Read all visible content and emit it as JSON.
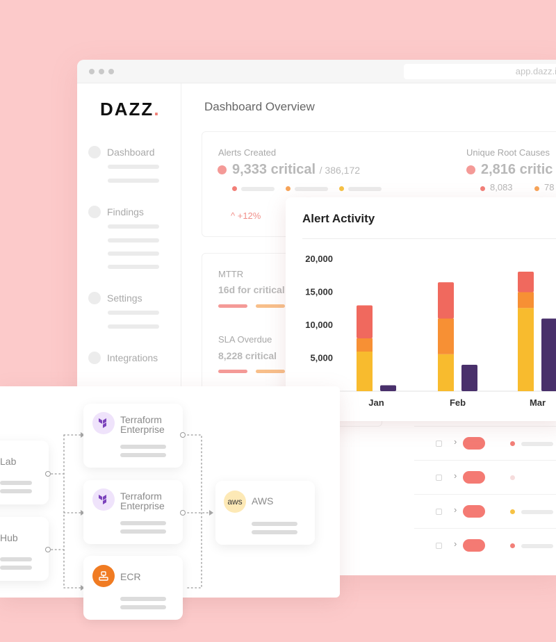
{
  "window": {
    "url": "app.dazz.i"
  },
  "sidebar": {
    "logo": "DAZZ",
    "logo_dot": ".",
    "items": [
      {
        "label": "Dashboard"
      },
      {
        "label": "Findings"
      },
      {
        "label": "Settings"
      },
      {
        "label": "Integrations"
      }
    ]
  },
  "main": {
    "title": "Dashboard Overview",
    "alerts_created": {
      "label": "Alerts Created",
      "value": "9,333 critical",
      "total": "/ 386,172",
      "trend": "+12%"
    },
    "unique_root_causes": {
      "label": "Unique Root Causes",
      "value": "2,816 critic",
      "sub_a": "8,083",
      "sub_b": "78"
    },
    "mttr": {
      "label": "MTTR",
      "value": "16d for critical"
    },
    "sla_overdue": {
      "label": "SLA Overdue",
      "value": "8,228 critical"
    }
  },
  "chart": {
    "title": "Alert Activity"
  },
  "chart_data": {
    "type": "bar",
    "stacked": true,
    "categories": [
      "Jan",
      "Feb",
      "Mar"
    ],
    "ylim": [
      0,
      20000
    ],
    "yticks": [
      "20,000",
      "15,000",
      "10,000",
      "5,000"
    ],
    "ytick_values": [
      20000,
      15000,
      10000,
      5000
    ],
    "stacked_bars": [
      {
        "category": "Jan",
        "segments": [
          6000,
          2000,
          5000
        ]
      },
      {
        "category": "Feb",
        "segments": [
          5600,
          5400,
          5500
        ]
      },
      {
        "category": "Mar",
        "segments": [
          12600,
          2400,
          3100
        ]
      }
    ],
    "second_bars": [
      {
        "category": "Jan",
        "value": 900
      },
      {
        "category": "Feb",
        "value": 4000
      },
      {
        "category": "Mar",
        "value": 11000
      }
    ],
    "colors": {
      "seg1": "#f8bb2e",
      "seg2": "#f79034",
      "seg3": "#f0695e",
      "second": "#49306b"
    }
  },
  "pipeline": {
    "sources": [
      {
        "title": "Lab"
      },
      {
        "title": "Hub"
      }
    ],
    "middle": [
      {
        "title_line1": "Terraform",
        "title_line2": "Enterprise",
        "icon": "terraform-icon"
      },
      {
        "title_line1": "Terraform",
        "title_line2": "Enterprise",
        "icon": "terraform-icon"
      },
      {
        "title": "ECR",
        "icon": "ecr-icon"
      }
    ],
    "target": {
      "title": "AWS",
      "icon_text": "aws"
    }
  }
}
